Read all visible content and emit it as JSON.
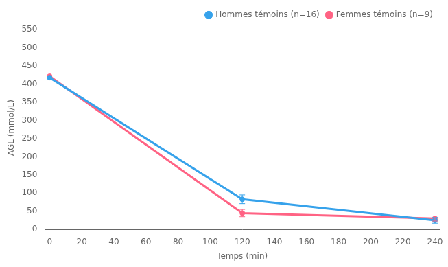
{
  "chart_data": {
    "type": "line",
    "x": [
      0,
      120,
      240
    ],
    "series": [
      {
        "name": "Hommes témoins (n=16)",
        "values": [
          418,
          83,
          25
        ],
        "errors": [
          0,
          12,
          8
        ],
        "marker": "circle",
        "line_style": "solid"
      },
      {
        "name": "Femmes témoins (n=9)",
        "values": [
          422,
          45,
          30
        ],
        "errors": [
          0,
          10,
          7
        ],
        "marker": "circle",
        "line_style": "solid"
      }
    ],
    "xlabel": "Temps (min)",
    "ylabel": "AGL (mmol/L)",
    "xlim": [
      -3,
      243
    ],
    "ylim": [
      0,
      560
    ],
    "xticks": [
      0,
      20,
      40,
      60,
      80,
      100,
      120,
      140,
      160,
      180,
      200,
      220,
      240
    ],
    "yticks": [
      0,
      50,
      100,
      150,
      200,
      250,
      300,
      350,
      400,
      450,
      500,
      550
    ],
    "grid": false,
    "legend": "upper right"
  }
}
